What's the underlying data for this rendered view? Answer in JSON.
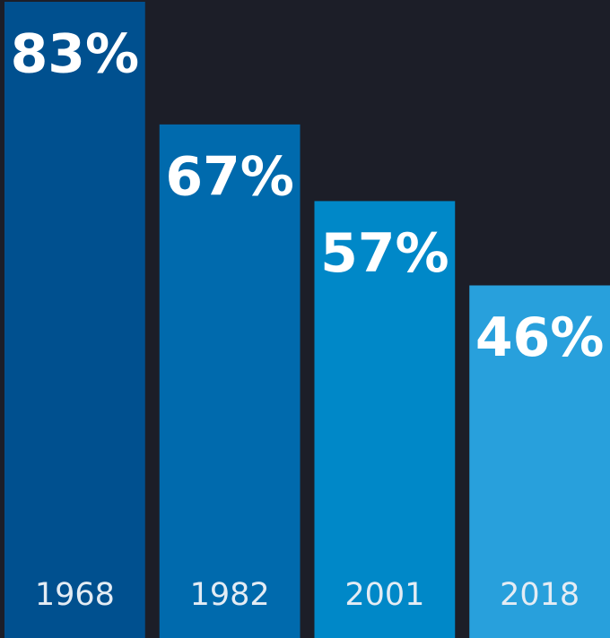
{
  "chart_data": {
    "type": "bar",
    "categories": [
      "1968",
      "1982",
      "2001",
      "2018"
    ],
    "values": [
      83,
      67,
      57,
      46
    ],
    "value_labels": [
      "83%",
      "67%",
      "57%",
      "46%"
    ],
    "colors": [
      "#00508f",
      "#006aad",
      "#0088c8",
      "#28a0dc"
    ],
    "ylim": [
      0,
      83
    ]
  }
}
